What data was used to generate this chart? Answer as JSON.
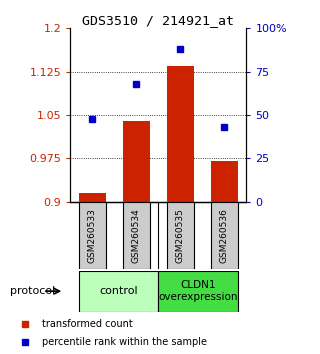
{
  "title": "GDS3510 / 214921_at",
  "samples": [
    "GSM260533",
    "GSM260534",
    "GSM260535",
    "GSM260536"
  ],
  "bar_values": [
    0.915,
    1.04,
    1.135,
    0.97
  ],
  "dot_values": [
    48,
    68,
    88,
    43
  ],
  "ylim_left": [
    0.9,
    1.2
  ],
  "ylim_right": [
    0,
    100
  ],
  "yticks_left": [
    0.9,
    0.975,
    1.05,
    1.125,
    1.2
  ],
  "yticks_right": [
    0,
    25,
    50,
    75,
    100
  ],
  "bar_color": "#cc2200",
  "dot_color": "#0000cc",
  "bar_base": 0.9,
  "control_color": "#bbffbb",
  "cldn1_color": "#44dd44",
  "sample_box_color": "#cccccc",
  "protocol_label": "protocol",
  "legend_bar_label": "transformed count",
  "legend_dot_label": "percentile rank within the sample",
  "x_positions": [
    1,
    2,
    3,
    4
  ],
  "bar_width": 0.6
}
